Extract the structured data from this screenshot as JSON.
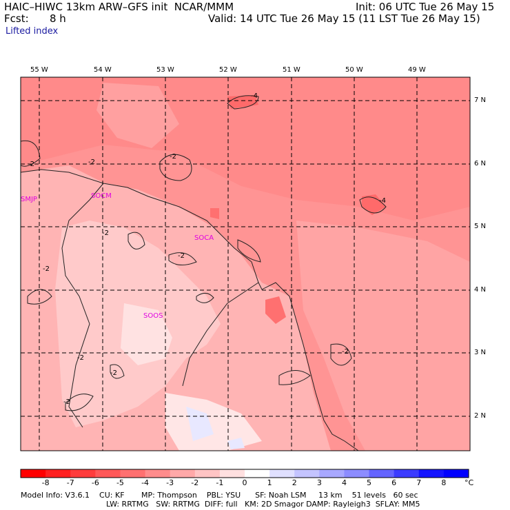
{
  "header": {
    "model": "HAIC–HIWC 13km ARW–GFS init  NCAR/MMM",
    "init": "Init: 06 UTC Tue 26 May 15",
    "fcst_label": "Fcst:",
    "fcst_value": "8 h",
    "valid": "Valid: 14 UTC Tue 26 May 15 (11 LST Tue 26 May 15)",
    "field": "Lifted index"
  },
  "map": {
    "lon_labels": [
      "55 W",
      "54 W",
      "53 W",
      "52 W",
      "51 W",
      "50 W",
      "49 W"
    ],
    "lat_labels": [
      "7 N",
      "6 N",
      "5 N",
      "4 N",
      "3 N",
      "2 N"
    ],
    "stations": [
      "SMJP",
      "SOCM",
      "SOCA",
      "SOOS"
    ],
    "contour_labels": [
      "-4",
      "-2",
      "-2",
      "-2",
      "-2",
      "-2",
      "-2",
      "-2",
      "-2",
      "-2",
      "-2",
      "-4",
      "-2"
    ]
  },
  "colorbar": {
    "labels": [
      "-8",
      "-7",
      "-6",
      "-5",
      "-4",
      "-3",
      "-2",
      "-1",
      "0",
      "1",
      "2",
      "3",
      "4",
      "5",
      "6",
      "7",
      "8"
    ],
    "unit": "°C",
    "colors": [
      "#ff0000",
      "#ff2020",
      "#ff3c3c",
      "#ff5858",
      "#ff7070",
      "#ff8c8c",
      "#ffa8a8",
      "#ffc4c4",
      "#ffe0e0",
      "#ffffff",
      "#e0e0ff",
      "#c4c4ff",
      "#a8a8ff",
      "#8c8cff",
      "#6464ff",
      "#3c3cff",
      "#1414ff",
      "#0000ff"
    ]
  },
  "footer": {
    "line1": "Model Info: V3.6.1    CU: KF       MP: Thompson    PBL: YSU      SF: Noah LSM     13 km    51 levels   60 sec",
    "line2": "LW: RRTMG   SW: RRTMG  DIFF: full   KM: 2D Smagor DAMP: Rayleigh3  SFLAY: MM5"
  }
}
